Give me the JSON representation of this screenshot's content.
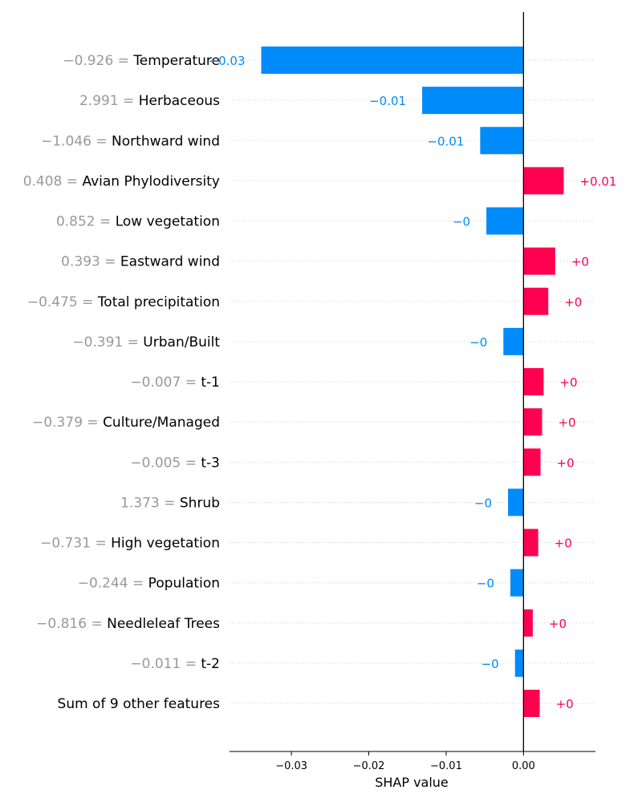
{
  "chart_data": {
    "type": "bar",
    "orientation": "horizontal",
    "xlabel": "SHAP value",
    "xlim": [
      -0.038,
      0.0093
    ],
    "xticks": [
      -0.03,
      -0.02,
      -0.01,
      0.0
    ],
    "xtick_labels": [
      "−0.03",
      "−0.02",
      "−0.01",
      "0.00"
    ],
    "grid": "dotted horizontal row lines",
    "colors": {
      "positive": "#ff0051",
      "negative": "#008bfb",
      "value_label": "#999999"
    },
    "rows": [
      {
        "feature_value": "−0.926",
        "feature": "Temperature",
        "value": -0.0339,
        "label": "−0.03"
      },
      {
        "feature_value": "2.991",
        "feature": "Herbaceous",
        "value": -0.0131,
        "label": "−0.01"
      },
      {
        "feature_value": "−1.046",
        "feature": "Northward wind",
        "value": -0.0056,
        "label": "−0.01"
      },
      {
        "feature_value": "0.408",
        "feature": "Avian Phylodiversity",
        "value": 0.0052,
        "label": "+0.01"
      },
      {
        "feature_value": "0.852",
        "feature": "Low vegetation",
        "value": -0.0048,
        "label": "−0"
      },
      {
        "feature_value": "0.393",
        "feature": "Eastward wind",
        "value": 0.0041,
        "label": "+0"
      },
      {
        "feature_value": "−0.475",
        "feature": "Total precipitation",
        "value": 0.0032,
        "label": "+0"
      },
      {
        "feature_value": "−0.391",
        "feature": "Urban/Built",
        "value": -0.0026,
        "label": "−0"
      },
      {
        "feature_value": "−0.007",
        "feature": "t-1",
        "value": 0.0026,
        "label": "+0"
      },
      {
        "feature_value": "−0.379",
        "feature": "Culture/Managed",
        "value": 0.0024,
        "label": "+0"
      },
      {
        "feature_value": "−0.005",
        "feature": "t-3",
        "value": 0.0022,
        "label": "+0"
      },
      {
        "feature_value": "1.373",
        "feature": "Shrub",
        "value": -0.002,
        "label": "−0"
      },
      {
        "feature_value": "−0.731",
        "feature": "High vegetation",
        "value": 0.0019,
        "label": "+0"
      },
      {
        "feature_value": "−0.244",
        "feature": "Population",
        "value": -0.0017,
        "label": "−0"
      },
      {
        "feature_value": "−0.816",
        "feature": "Needleleaf Trees",
        "value": 0.0012,
        "label": "+0"
      },
      {
        "feature_value": "−0.011",
        "feature": "t-2",
        "value": -0.0011,
        "label": "−0"
      },
      {
        "feature_value": "",
        "feature": "Sum of 9 other features",
        "value": 0.0021,
        "label": "+0"
      }
    ]
  }
}
